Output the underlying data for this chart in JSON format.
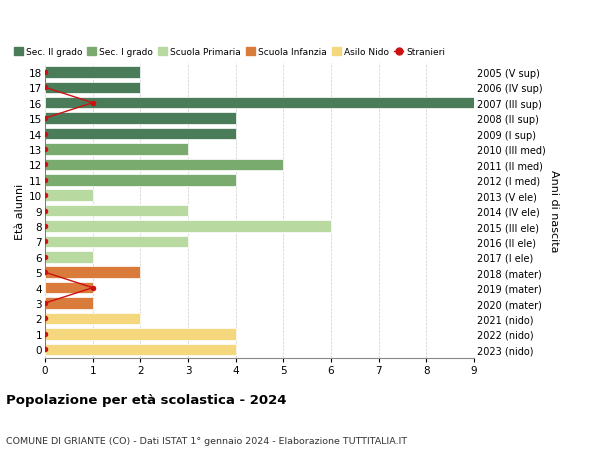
{
  "ages": [
    18,
    17,
    16,
    15,
    14,
    13,
    12,
    11,
    10,
    9,
    8,
    7,
    6,
    5,
    4,
    3,
    2,
    1,
    0
  ],
  "right_labels": [
    "2005 (V sup)",
    "2006 (IV sup)",
    "2007 (III sup)",
    "2008 (II sup)",
    "2009 (I sup)",
    "2010 (III med)",
    "2011 (II med)",
    "2012 (I med)",
    "2013 (V ele)",
    "2014 (IV ele)",
    "2015 (III ele)",
    "2016 (II ele)",
    "2017 (I ele)",
    "2018 (mater)",
    "2019 (mater)",
    "2020 (mater)",
    "2021 (nido)",
    "2022 (nido)",
    "2023 (nido)"
  ],
  "bar_values": [
    2,
    2,
    9,
    4,
    4,
    3,
    5,
    4,
    1,
    3,
    6,
    3,
    1,
    2,
    1,
    1,
    2,
    4,
    4
  ],
  "bar_colors": [
    "#4a7c59",
    "#4a7c59",
    "#4a7c59",
    "#4a7c59",
    "#4a7c59",
    "#7aab6e",
    "#7aab6e",
    "#7aab6e",
    "#b8d9a0",
    "#b8d9a0",
    "#b8d9a0",
    "#b8d9a0",
    "#b8d9a0",
    "#d97b3a",
    "#d97b3a",
    "#d97b3a",
    "#f5d87e",
    "#f5d87e",
    "#f5d87e"
  ],
  "stranieri_values": [
    0,
    0,
    1,
    0,
    0,
    0,
    0,
    0,
    0,
    0,
    0,
    0,
    0,
    0,
    1,
    0,
    0,
    0,
    0
  ],
  "stranieri_color": "#cc1111",
  "legend_labels": [
    "Sec. II grado",
    "Sec. I grado",
    "Scuola Primaria",
    "Scuola Infanzia",
    "Asilo Nido",
    "Stranieri"
  ],
  "legend_colors": [
    "#4a7c59",
    "#7aab6e",
    "#b8d9a0",
    "#d97b3a",
    "#f5d87e",
    "#cc1111"
  ],
  "title": "Popolazione per età scolastica - 2024",
  "subtitle": "COMUNE DI GRIANTE (CO) - Dati ISTAT 1° gennaio 2024 - Elaborazione TUTTITALIA.IT",
  "ylabel": "Età alunni",
  "ylabel_right": "Anni di nascita",
  "xlim": [
    0,
    9
  ],
  "xticks": [
    0,
    1,
    2,
    3,
    4,
    5,
    6,
    7,
    8,
    9
  ],
  "bar_height": 0.75,
  "background_color": "#ffffff",
  "grid_color": "#cccccc"
}
